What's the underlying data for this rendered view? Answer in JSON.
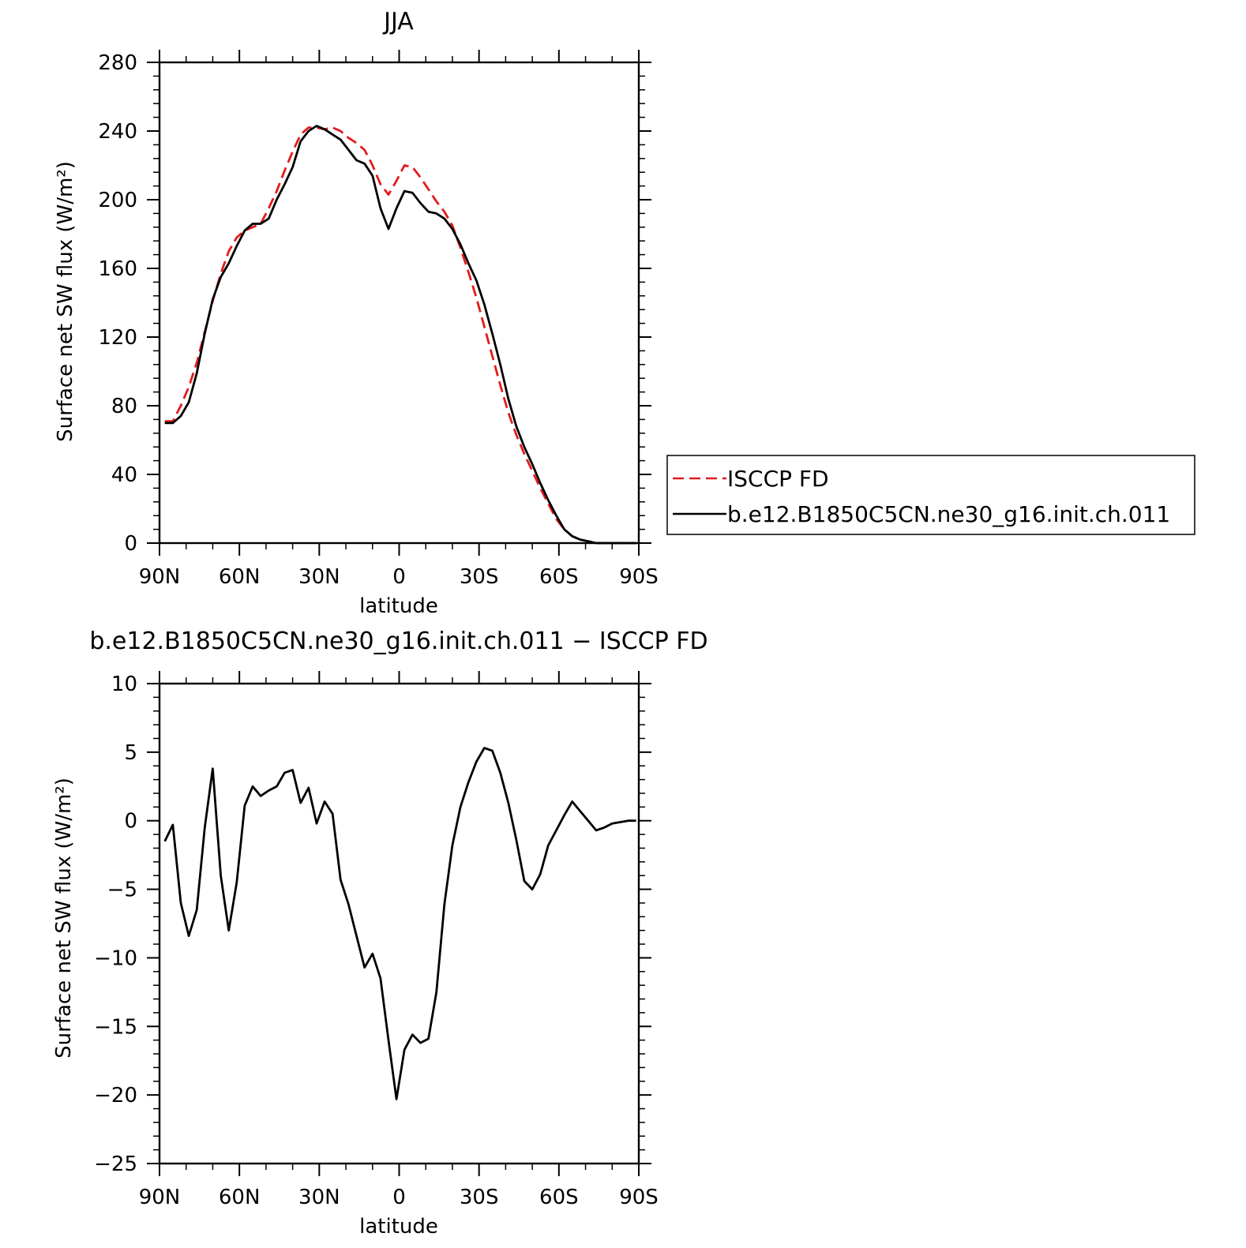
{
  "chart_data": [
    {
      "type": "line",
      "title": "JJA",
      "xlabel": "latitude",
      "ylabel": "Surface net SW flux (W/m²)",
      "xlim": [
        90,
        -90
      ],
      "ylim": [
        0,
        280
      ],
      "xticks": [
        90,
        60,
        30,
        0,
        -30,
        -60,
        -90
      ],
      "xtick_labels": [
        "90N",
        "60N",
        "30N",
        "0",
        "30S",
        "60S",
        "90S"
      ],
      "yticks": [
        0,
        40,
        80,
        120,
        160,
        200,
        240,
        280
      ],
      "ytick_labels": [
        "0",
        "40",
        "80",
        "120",
        "160",
        "200",
        "240",
        "280"
      ],
      "legend_position": "right",
      "series": [
        {
          "name": "ISCCP FD",
          "color": "#e41a1c",
          "style": "dashed",
          "x": [
            88,
            85,
            82,
            79,
            76,
            73,
            70,
            67,
            64,
            61,
            58,
            55,
            52,
            49,
            46,
            43,
            40,
            37,
            34,
            31,
            28,
            25,
            22,
            19,
            16,
            13,
            10,
            7,
            4,
            1,
            -2,
            -5,
            -8,
            -11,
            -14,
            -17,
            -20,
            -23,
            -26,
            -29,
            -32,
            -35,
            -38,
            -41,
            -44,
            -47,
            -50,
            -53,
            -56,
            -59,
            -62,
            -65,
            -68,
            -71,
            -74,
            -77,
            -80,
            -83,
            -86,
            -89
          ],
          "y": [
            71,
            71,
            80,
            91,
            105,
            123,
            141,
            157,
            170,
            178,
            182,
            184,
            186,
            195,
            205,
            217,
            228,
            238,
            242,
            242,
            241,
            242,
            240,
            236,
            233,
            229,
            220,
            209,
            203,
            211,
            220,
            219,
            213,
            206,
            199,
            193,
            185,
            172,
            158,
            143,
            126,
            109,
            92,
            76,
            63,
            52,
            42,
            32,
            23,
            14,
            8,
            4,
            2,
            1,
            0,
            0,
            0,
            0,
            0,
            0
          ]
        },
        {
          "name": "b.e12.B1850C5CN.ne30_g16.init.ch.011",
          "color": "#000000",
          "style": "solid",
          "x": [
            88,
            85,
            82,
            79,
            76,
            73,
            70,
            67,
            64,
            61,
            58,
            55,
            52,
            49,
            46,
            43,
            40,
            37,
            34,
            31,
            28,
            25,
            22,
            19,
            16,
            13,
            10,
            7,
            4,
            1,
            -2,
            -5,
            -8,
            -11,
            -14,
            -17,
            -20,
            -23,
            -26,
            -29,
            -32,
            -35,
            -38,
            -41,
            -44,
            -47,
            -50,
            -53,
            -56,
            -59,
            -62,
            -65,
            -68,
            -71,
            -74,
            -77,
            -80,
            -83,
            -86,
            -89
          ],
          "y": [
            70,
            70,
            74,
            82,
            99,
            122,
            142,
            155,
            163,
            173,
            182,
            186,
            186,
            189,
            200,
            209,
            219,
            234,
            240,
            243,
            241,
            238,
            235,
            229,
            223,
            221,
            214,
            195,
            183,
            195,
            205,
            204,
            198,
            193,
            192,
            189,
            183,
            174,
            163,
            153,
            139,
            122,
            104,
            84,
            68,
            56,
            46,
            35,
            25,
            16,
            8,
            4,
            2,
            1,
            0,
            0,
            0,
            0,
            0,
            0
          ]
        }
      ]
    },
    {
      "type": "line",
      "title": "b.e12.B1850C5CN.ne30_g16.init.ch.011 − ISCCP FD",
      "xlabel": "latitude",
      "ylabel": "Surface net SW flux (W/m²)",
      "xlim": [
        90,
        -90
      ],
      "ylim": [
        -25,
        10
      ],
      "xticks": [
        90,
        60,
        30,
        0,
        -30,
        -60,
        -90
      ],
      "xtick_labels": [
        "90N",
        "60N",
        "30N",
        "0",
        "30S",
        "60S",
        "90S"
      ],
      "yticks": [
        -25,
        -20,
        -15,
        -10,
        -5,
        0,
        5,
        10
      ],
      "ytick_labels": [
        "−25",
        "−20",
        "−15",
        "−10",
        "−5",
        "0",
        "5",
        "10"
      ],
      "series": [
        {
          "color": "#000000",
          "style": "solid",
          "x": [
            88,
            85,
            82,
            79,
            76,
            73,
            70,
            67,
            64,
            61,
            58,
            55,
            52,
            49,
            46,
            43,
            40,
            37,
            34,
            31,
            28,
            25,
            22,
            19,
            16,
            13,
            10,
            7,
            4,
            1,
            -2,
            -5,
            -8,
            -11,
            -14,
            -17,
            -20,
            -23,
            -26,
            -29,
            -32,
            -35,
            -38,
            -41,
            -44,
            -47,
            -50,
            -53,
            -56,
            -59,
            -62,
            -65,
            -68,
            -71,
            -74,
            -77,
            -80,
            -83,
            -86,
            -89
          ],
          "y": [
            -1.5,
            -0.3,
            -6,
            -8.4,
            -6.5,
            -0.5,
            3.8,
            -4,
            -8,
            -4.5,
            1.1,
            2.5,
            1.8,
            2.2,
            2.5,
            3.5,
            3.7,
            1.3,
            2.4,
            -0.2,
            1.4,
            0.5,
            -4.3,
            -6.1,
            -8.4,
            -10.7,
            -9.7,
            -11.5,
            -16,
            -20.3,
            -16.7,
            -15.6,
            -16.2,
            -15.9,
            -12.5,
            -6.1,
            -1.8,
            1,
            2.8,
            4.3,
            5.3,
            5.1,
            3.5,
            1.3,
            -1.4,
            -4.4,
            -5,
            -3.9,
            -1.8,
            -0.7,
            0.4,
            1.4,
            0.7,
            0,
            -0.7,
            -0.5,
            -0.2,
            -0.1,
            0,
            0
          ]
        }
      ]
    }
  ]
}
